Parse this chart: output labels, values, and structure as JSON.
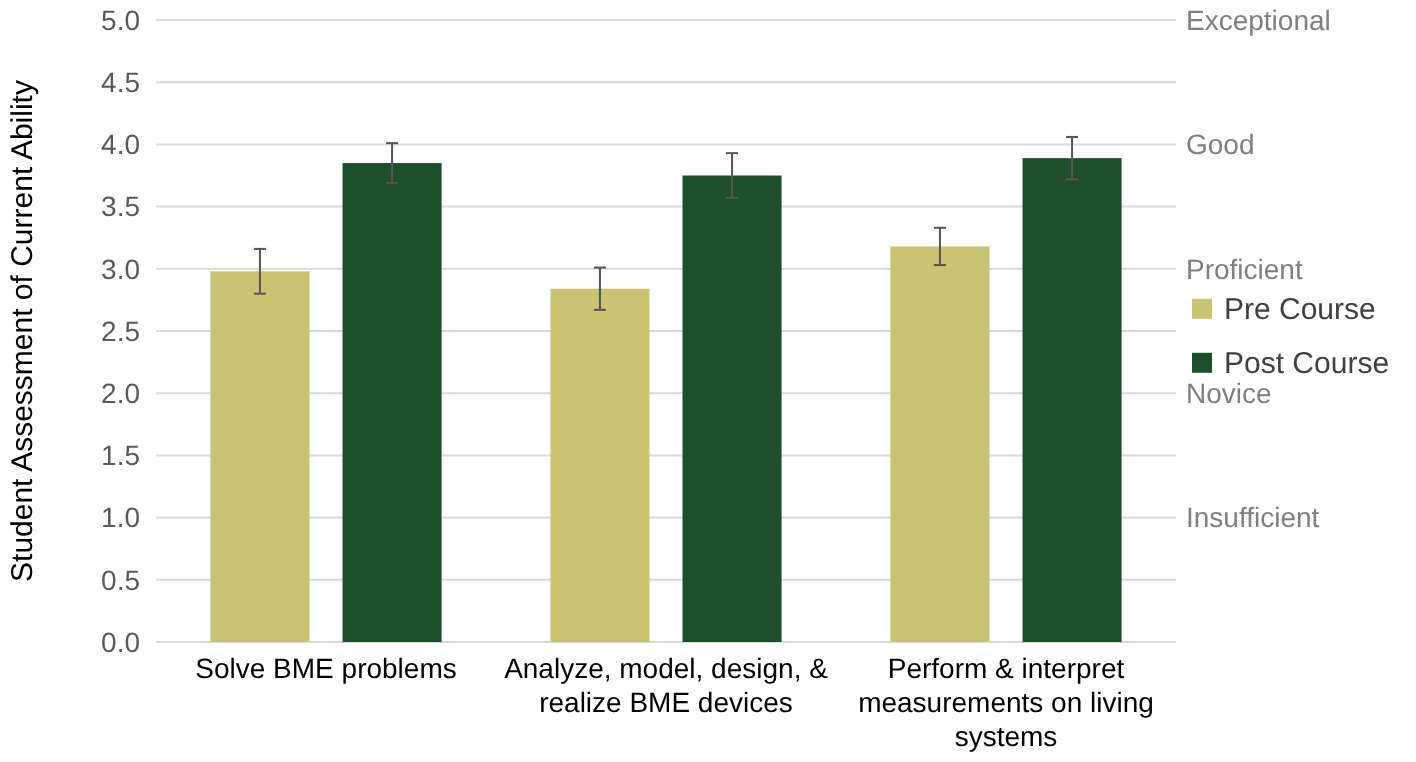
{
  "chart_data": {
    "type": "bar",
    "ylabel": "Student Assessment of Current Ability",
    "categories": [
      "Solve BME problems",
      "Analyze, model, design, & realize BME devices",
      "Perform & interpret measurements on living systems"
    ],
    "series": [
      {
        "name": "Pre Course",
        "color": "#c8c473",
        "values": [
          2.98,
          2.84,
          3.18
        ],
        "errors": [
          0.18,
          0.17,
          0.15
        ]
      },
      {
        "name": "Post Course",
        "color": "#1f4e2c",
        "values": [
          3.85,
          3.75,
          3.89
        ],
        "errors": [
          0.16,
          0.18,
          0.17
        ]
      }
    ],
    "ylim": [
      0,
      5
    ],
    "yticks": [
      {
        "value": 0,
        "label": "0.0"
      },
      {
        "value": 0.5,
        "label": "0.5"
      },
      {
        "value": 1,
        "label": "1.0"
      },
      {
        "value": 1.5,
        "label": "1.5"
      },
      {
        "value": 2,
        "label": "2.0"
      },
      {
        "value": 2.5,
        "label": "2.5"
      },
      {
        "value": 3,
        "label": "3.0"
      },
      {
        "value": 3.5,
        "label": "3.5"
      },
      {
        "value": 4,
        "label": "4.0"
      },
      {
        "value": 4.5,
        "label": "4.5"
      },
      {
        "value": 5,
        "label": "5.0"
      }
    ],
    "annotations": [
      "Insufficient",
      "Novice",
      "Proficient",
      "Good",
      "Exceptional"
    ],
    "grid": "y",
    "legend": "right"
  }
}
